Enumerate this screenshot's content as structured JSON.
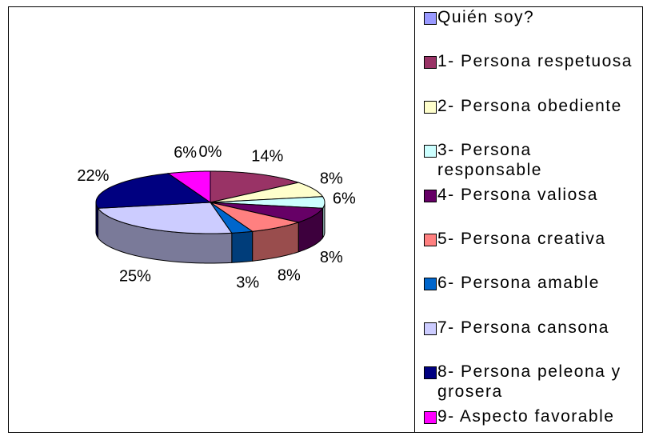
{
  "chart_data": {
    "type": "pie",
    "categories": [
      "Quién soy?",
      "1- Persona respetuosa",
      "2- Persona obediente",
      "3- Persona responsable",
      "4- Persona valiosa",
      "5- Persona creativa",
      "6- Persona amable",
      "7- Persona cansona",
      "8- Persona peleona y grosera",
      "9- Aspecto favorable"
    ],
    "values": [
      0,
      14,
      8,
      6,
      8,
      8,
      3,
      25,
      22,
      6
    ],
    "value_labels": [
      "0%",
      "14%",
      "8%",
      "6%",
      "8%",
      "8%",
      "3%",
      "25%",
      "22%",
      "6%"
    ],
    "colors": [
      "#9999ff",
      "#993366",
      "#ffffcc",
      "#ccffff",
      "#660066",
      "#ff8080",
      "#0066cc",
      "#ccccff",
      "#000080",
      "#ff00ff"
    ],
    "legend": "right"
  }
}
